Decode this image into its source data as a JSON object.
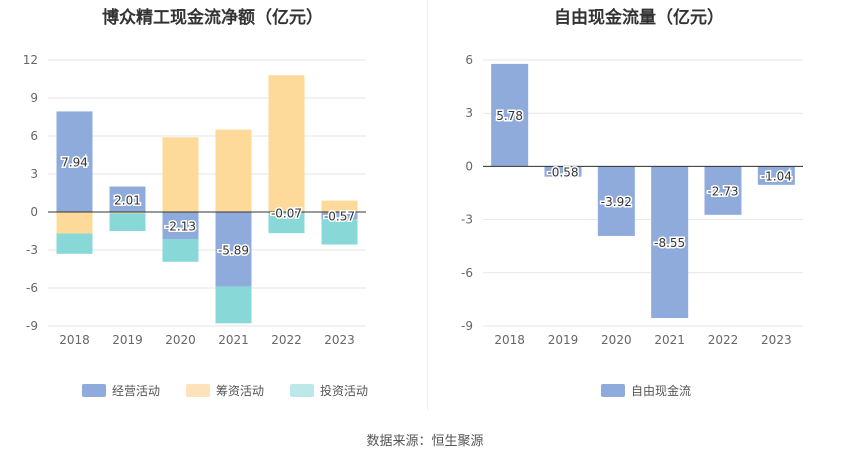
{
  "source_label": "数据来源：恒生聚源",
  "chart_data": [
    {
      "type": "bar",
      "stacked": true,
      "title": "博众精工现金流净额（亿元）",
      "categories": [
        "2018",
        "2019",
        "2020",
        "2021",
        "2022",
        "2023"
      ],
      "ylim": [
        -9,
        12
      ],
      "yticks": [
        -9,
        -6,
        -3,
        0,
        3,
        6,
        9,
        12
      ],
      "grid": true,
      "legend_position": "bottom",
      "series": [
        {
          "name": "经营活动",
          "color": "#8fabdc",
          "values": [
            7.94,
            2.01,
            -2.13,
            -5.89,
            -0.07,
            -0.57
          ],
          "labels": [
            "7.94",
            "2.01",
            "-2.13",
            "-5.89",
            "-0.07",
            "-0.57"
          ]
        },
        {
          "name": "筹资活动",
          "color": "#fdd99a",
          "values": [
            -1.7,
            -0.1,
            5.9,
            6.5,
            10.8,
            0.9
          ]
        },
        {
          "name": "投资活动",
          "color": "#88d8d8",
          "values": [
            -1.6,
            -1.4,
            -1.8,
            -2.9,
            -1.6,
            -2.0
          ]
        }
      ],
      "legend_swatch_colors": [
        "#8fabdc",
        "#fde3ba",
        "#bde8ea"
      ]
    },
    {
      "type": "bar",
      "title": "自由现金流量（亿元）",
      "categories": [
        "2018",
        "2019",
        "2020",
        "2021",
        "2022",
        "2023"
      ],
      "ylim": [
        -9,
        6
      ],
      "yticks": [
        -9,
        -6,
        -3,
        0,
        3,
        6
      ],
      "grid": true,
      "legend_position": "bottom",
      "series": [
        {
          "name": "自由现金流",
          "color": "#8fabdc",
          "values": [
            5.78,
            -0.58,
            -3.92,
            -8.55,
            -2.73,
            -1.04
          ],
          "labels": [
            "5.78",
            "-0.58",
            "-3.92",
            "-8.55",
            "-2.73",
            "-1.04"
          ]
        }
      ],
      "legend_swatch_colors": [
        "#8fabdc"
      ]
    }
  ]
}
